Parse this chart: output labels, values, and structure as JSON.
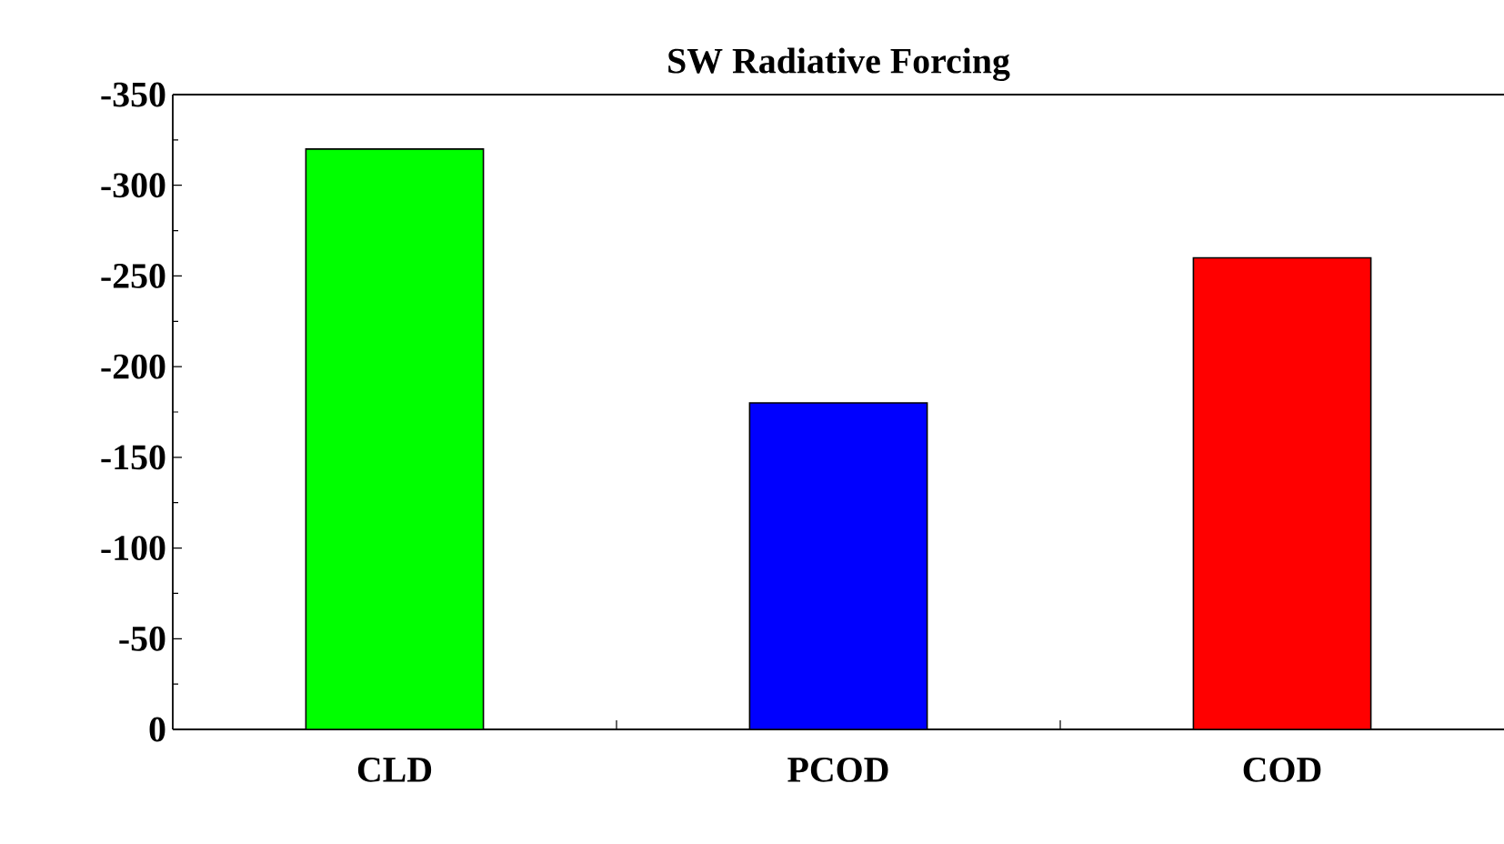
{
  "chart_data": {
    "type": "bar",
    "title": "SW Radiative Forcing",
    "categories": [
      "CLD",
      "PCOD",
      "COD"
    ],
    "values": [
      -320,
      -180,
      -260
    ],
    "colors": [
      "#00ff00",
      "#0000ff",
      "#ff0000"
    ],
    "ylim": [
      0,
      -350
    ],
    "yticks": [
      0,
      -50,
      -100,
      -150,
      -200,
      -250,
      -300,
      -350
    ],
    "grid": false
  }
}
